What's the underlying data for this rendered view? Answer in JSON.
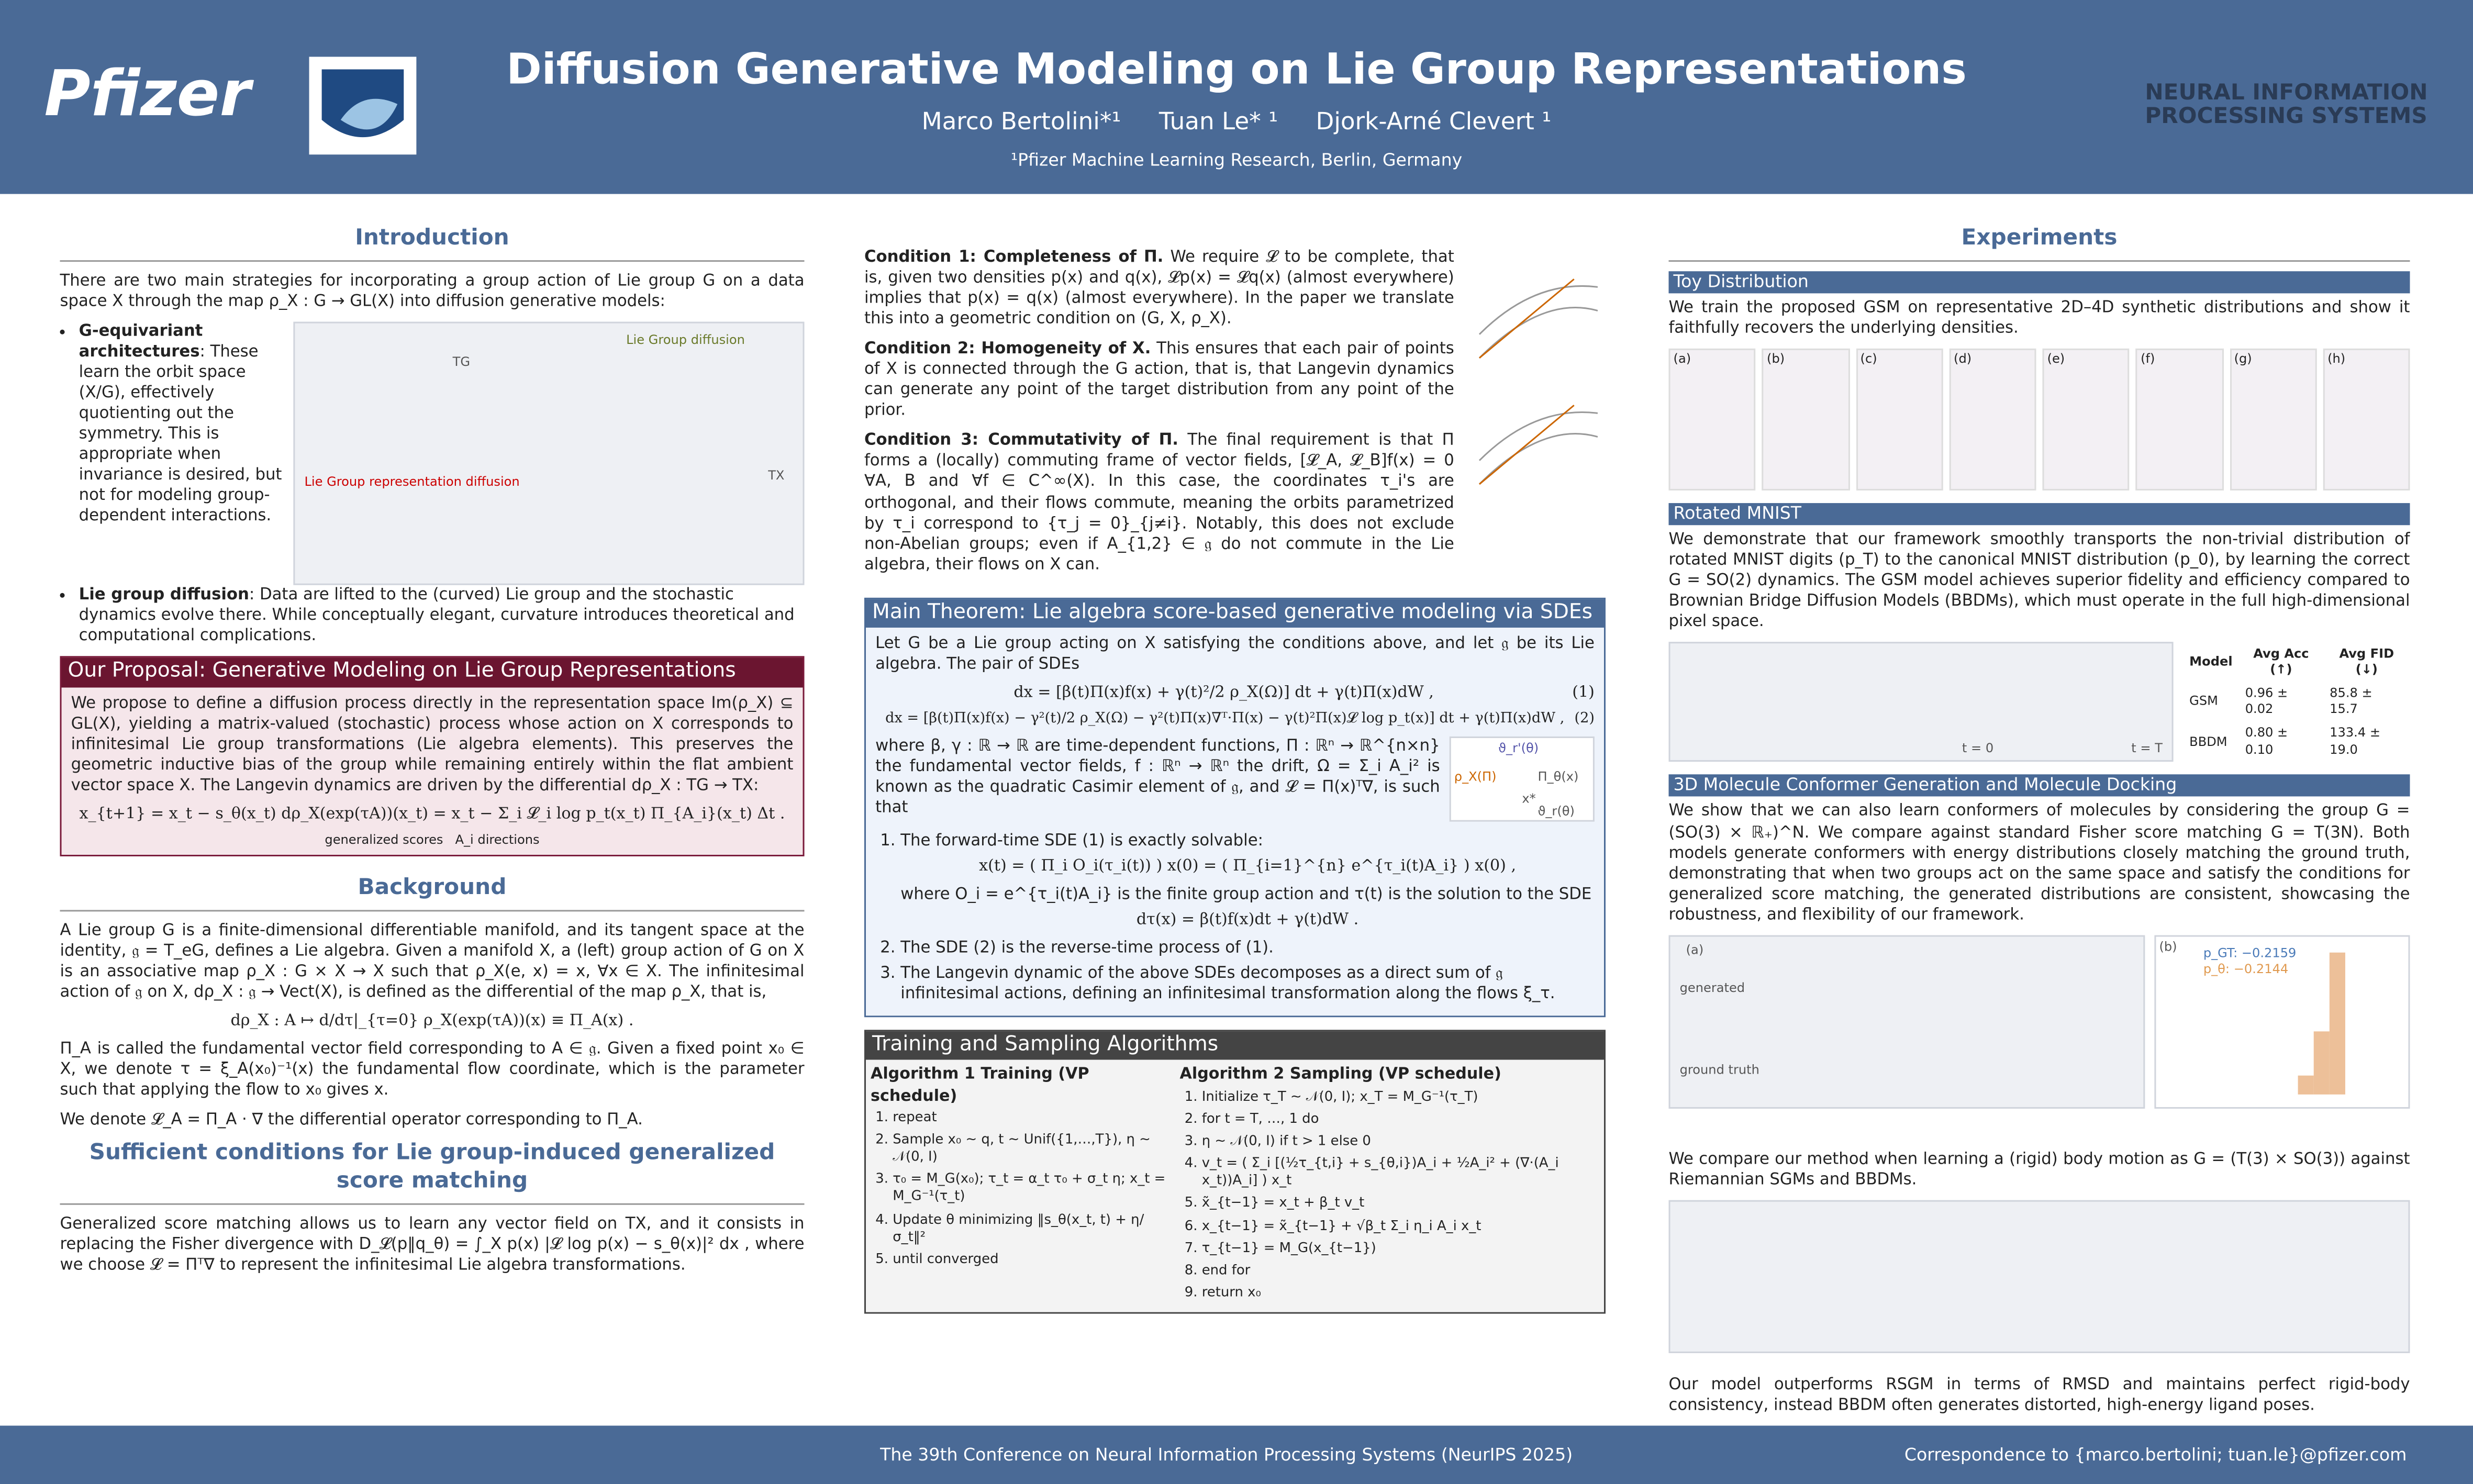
{
  "header": {
    "title": "Diffusion Generative Modeling on Lie Group Representations",
    "authors": [
      "Marco Bertolini*¹",
      "Tuan Le* ¹",
      "Djork-Arné Clevert ¹"
    ],
    "affiliation": "¹Pfizer Machine Learning Research, Berlin, Germany",
    "logo_left": "Pfizer",
    "logo_right": [
      "NEURAL INFORMATION",
      "PROCESSING SYSTEMS"
    ]
  },
  "introduction": {
    "heading": "Introduction",
    "text": "There are two main strategies for incorporating a group action of Lie group G on a data space X through the map ρ_X : G → GL(X) into diffusion generative models:",
    "bullets": [
      {
        "lead": "G-equivariant architectures",
        "text": ": These learn the orbit space (X/G), effectively quotienting out the symmetry. This is appropriate when invariance is desired, but not for modeling group-dependent interactions."
      },
      {
        "lead": "Lie group diffusion",
        "text": ": Data are lifted to the (curved) Lie group and the stochastic dynamics evolve there. While conceptually elegant, curvature introduces theoretical and computational complications."
      }
    ],
    "figure_labels": [
      "Lie Group diffusion",
      "Lie Group representation diffusion",
      "TG",
      "TX"
    ]
  },
  "proposal": {
    "heading": "Our Proposal: Generative Modeling on Lie Group Representations",
    "text": "We propose to define a diffusion process directly in the representation space Im(ρ_X) ⊆ GL(X), yielding a matrix-valued (stochastic) process whose action on X corresponds to infinitesimal Lie group transformations (Lie algebra elements). This preserves the geometric inductive bias of the group while remaining entirely within the flat ambient vector space X. The Langevin dynamics are driven by the differential dρ_X : TG → TX:",
    "equation": "x_{t+1} = x_t − s_θ(x_t) dρ_X(exp(τA))(x_t) = x_t − Σ_i 𝓛_i log p_t(x_t) Π_{A_i}(x_t) Δt .",
    "under_labels": [
      "generalized scores",
      "A_i directions"
    ]
  },
  "background": {
    "heading": "Background",
    "paragraphs": [
      "A Lie group G is a finite-dimensional differentiable manifold, and its tangent space at the identity, 𝔤 = T_eG, defines a Lie algebra. Given a manifold X, a (left) group action of G on X is an associative map ρ_X : G × X → X such that ρ_X(e, x) = x, ∀x ∈ X. The infinitesimal action of 𝔤 on X, dρ_X : 𝔤 → Vect(X), is defined as the differential of the map ρ_X, that is,",
      "dρ_X : A ↦ d/dτ|_{τ=0} ρ_X(exp(τA))(x) ≡ Π_A(x) .",
      "Π_A is called the fundamental vector field corresponding to A ∈ 𝔤. Given a fixed point x₀ ∈ X, we denote τ = ξ_A(x₀)⁻¹(x) the fundamental flow coordinate, which is the parameter such that applying the flow to x₀ gives x.",
      "We denote 𝓛_A = Π_A · ∇ the differential operator corresponding to Π_A."
    ]
  },
  "sufficient": {
    "heading": "Sufficient conditions for Lie group-induced generalized score matching",
    "text": "Generalized score matching allows us to learn any vector field on TX, and it consists in replacing the Fisher divergence with D_𝓛(p‖q_θ) = ∫_X p(x) |𝓛 log p(x) − s_θ(x)|² dx , where we choose 𝓛 = Πᵀ∇ to represent the infinitesimal Lie algebra transformations."
  },
  "conditions": [
    {
      "lead": "Condition 1: Completeness of Π.",
      "text": " We require 𝓛 to be complete, that is, given two densities p(x) and q(x), 𝓛p(x) = 𝓛q(x) (almost everywhere) implies that p(x) = q(x) (almost everywhere). In the paper we translate this into a geometric condition on (G, X, ρ_X)."
    },
    {
      "lead": "Condition 2: Homogeneity of X.",
      "text": " This ensures that each pair of points of X is connected through the G action, that is, that Langevin dynamics can generate any point of the target distribution from any point of the prior."
    },
    {
      "lead": "Condition 3: Commutativity of Π.",
      "text": " The final requirement is that Π forms a (locally) commuting frame of vector fields, [𝓛_A, 𝓛_B]f(x) = 0 ∀A, B and ∀f ∈ C^∞(X). In this case, the coordinates τ_i's are orthogonal, and their flows commute, meaning the orbits parametrized by τ_i correspond to {τ_j = 0}_{j≠i}. Notably, this does not exclude non-Abelian groups; even if A_{1,2} ∈ 𝔤 do not commute in the Lie algebra, their flows on X can."
    }
  ],
  "theorem": {
    "heading": "Main Theorem: Lie algebra score-based generative modeling via SDEs",
    "intro": "Let G be a Lie group acting on X satisfying the conditions above, and let 𝔤 be its Lie algebra. The pair of SDEs",
    "equations": [
      {
        "eq": "dx = [β(t)Π(x)f(x) + γ(t)²/2 ρ_X(Ω)] dt + γ(t)Π(x)dW ,",
        "num": "(1)"
      },
      {
        "eq": "dx = [β(t)Π(x)f(x) − γ²(t)/2 ρ_X(Ω) − γ²(t)Π(x)∇ᵀ·Π(x) − γ(t)²Π(x)𝓛 log p_t(x)] dt + γ(t)Π(x)dW ,",
        "num": "(2)"
      }
    ],
    "middle": "where β, γ : ℝ → ℝ are time-dependent functions, Π : ℝⁿ → ℝ^{n×n} the fundamental vector fields, f : ℝⁿ → ℝⁿ the drift, Ω = Σ_i A_i² is known as the quadratic Casimir element of 𝔤, and 𝓛 = Π(x)ᵀ∇, is such that",
    "items": [
      "The forward-time SDE (1) is exactly solvable:",
      "The SDE (2) is the reverse-time process of (1).",
      "The Langevin dynamic of the above SDEs decomposes as a direct sum of 𝔤 infinitesimal actions, defining an infinitesimal transformation along the flows ξ_τ."
    ],
    "solution": "x(t) = ( Π_i O_i(τ_i(t)) ) x(0) = ( Π_{i=1}^{n} e^{τ_i(t)A_i} ) x(0) ,",
    "where": "where O_i = e^{τ_i(t)A_i} is the finite group action and τ(t) is the solution to the SDE",
    "sde": "dτ(x) = β(t)f(x)dt + γ(t)dW .",
    "figure_labels": [
      "ρ_X(Π)",
      "Π_θ(x)",
      "x*",
      "ϑ_r(θ)",
      "ϑ_r'(θ)"
    ]
  },
  "algorithms": {
    "heading": "Training and Sampling Algorithms",
    "alg1": {
      "title": "Algorithm 1 Training (VP schedule)",
      "lines": [
        "repeat",
        "Sample x₀ ∼ q, t ∼ Unif({1,…,T}), η ∼ 𝒩(0, I)",
        "τ₀ = M_G(x₀); τ_t = α_t τ₀ + σ_t η; x_t = M_G⁻¹(τ_t)",
        "Update θ minimizing ‖s_θ(x_t, t) + η/σ_t‖²",
        "until converged"
      ]
    },
    "alg2": {
      "title": "Algorithm 2 Sampling (VP schedule)",
      "lines": [
        "Initialize τ_T ∼ 𝒩(0, I); x_T = M_G⁻¹(τ_T)",
        "for t = T, …, 1 do",
        "η ∼ 𝒩(0, I) if t > 1 else 0",
        "v_t = ( Σ_i [(½τ_{t,i} + s_{θ,i})A_i + ½A_i² + (∇·(A_i x_t))A_i] ) x_t",
        "x̃_{t−1} = x_t + β_t v_t",
        "x_{t−1} = x̃_{t−1} + √β_t Σ_i η_i A_i x_t",
        "τ_{t−1} = M_G(x_{t−1})",
        "end for",
        "return x₀"
      ]
    }
  },
  "experiments": {
    "heading": "Experiments",
    "toy": {
      "heading": "Toy Distribution",
      "text": "We train the proposed GSM on representative 2D–4D synthetic distributions and show it faithfully recovers the underlying densities.",
      "panels": [
        "(a)",
        "(b)",
        "(c)",
        "(d)",
        "(e)",
        "(f)",
        "(g)",
        "(h)"
      ]
    },
    "mnist": {
      "heading": "Rotated MNIST",
      "text": "We demonstrate that our framework smoothly transports the non-trivial distribution of rotated MNIST digits (p_T) to the canonical MNIST distribution (p_0), by learning the correct G = SO(2) dynamics. The GSM model achieves superior fidelity and efficiency compared to Brownian Bridge Diffusion Models (BBDMs), which must operate in the full high-dimensional pixel space.",
      "table": {
        "header": [
          "Model",
          "Avg Acc (↑)",
          "Avg FID (↓)"
        ],
        "rows": [
          [
            "GSM",
            "0.96 ± 0.02",
            "85.8 ± 15.7"
          ],
          [
            "BBDM",
            "0.80 ± 0.10",
            "133.4 ± 19.0"
          ]
        ]
      },
      "time_labels": [
        "t = 0",
        "t = T"
      ]
    },
    "molecule": {
      "heading": "3D Molecule Conformer Generation and Molecule Docking",
      "text": "We show that we can also learn conformers of molecules by considering the group G = (SO(3) × ℝ₊)^N. We compare against standard Fisher score matching G = T(3N). Both models generate conformers with energy distributions closely matching the ground truth, demonstrating that when two groups act on the same space and satisfy the conditions for generalized score matching, the generated distributions are consistent, showcasing the robustness, and flexibility of our framework.",
      "row_labels": [
        "(a)",
        "generated",
        "ground truth",
        "(b)"
      ],
      "legend": [
        "p_GT: −0.2159",
        "p_θ: −0.2144"
      ],
      "text2": "We compare our method when learning a (rigid) body motion as G = (T(3) × SO(3)) against Riemannian SGMs and BBDMs.",
      "text3": "Our model outperforms RSGM in terms of RMSD and maintains perfect rigid-body consistency, instead BBDM often generates distorted, high-energy ligand poses."
    }
  },
  "footer": {
    "conference": "The 39th Conference on Neural Information Processing Systems (NeurIPS 2025)",
    "contact": "Correspondence to {marco.bertolini; tuan.le}@pfizer.com"
  }
}
